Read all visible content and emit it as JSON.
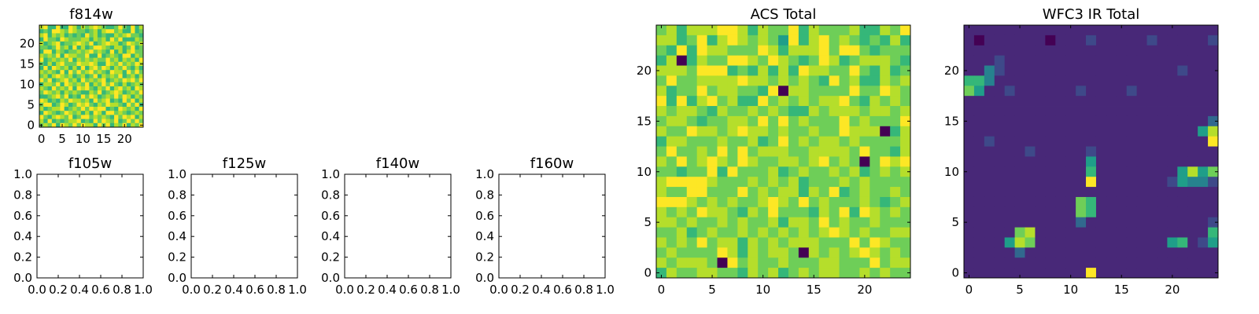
{
  "chart_data": [
    {
      "type": "heatmap",
      "title": "f814w",
      "colormap": "viridis",
      "xlim": [
        -0.5,
        24.5
      ],
      "ylim": [
        -0.5,
        24.5
      ],
      "xticks": [
        0,
        5,
        10,
        15,
        20
      ],
      "yticks": [
        0,
        5,
        10,
        15,
        20
      ],
      "z_rows_top_to_bottom": [
        "8966966986878987667976968",
        "6769987987767868997866967",
        "8968786767697867668789776",
        "6977698777886878697966687",
        "8678967789879678988679878",
        "7767978696867998768867967",
        "6996876778789787696868977",
        "8787969887796696787699687",
        "9678787968787877978687869",
        "7686897779889866987978798",
        "6969878686968979868797686",
        "8787696979789787698869797",
        "7868987867867968787967868",
        "9796789786978789678798979",
        "6887969878796879797686787",
        "8769787969897687968978698",
        "7987868787668796789867879",
        "6678979676979867879798687",
        "9867687988786978967697968",
        "7996798679897687988769796",
        "8678896787979899676987869",
        "6987679878686986997876787",
        "9768987967997878769798968",
        "8696767889676979879679797",
        "7879698797988697968796879"
      ]
    },
    {
      "type": "scatter",
      "title": "f105w",
      "xlim": [
        0.0,
        1.0
      ],
      "ylim": [
        0.0,
        1.0
      ],
      "xticks": [
        "0.0",
        "0.2",
        "0.4",
        "0.6",
        "0.8",
        "1.0"
      ],
      "yticks": [
        "0.0",
        "0.2",
        "0.4",
        "0.6",
        "0.8",
        "1.0"
      ],
      "points": []
    },
    {
      "type": "scatter",
      "title": "f125w",
      "xlim": [
        0.0,
        1.0
      ],
      "ylim": [
        0.0,
        1.0
      ],
      "xticks": [
        "0.0",
        "0.2",
        "0.4",
        "0.6",
        "0.8",
        "1.0"
      ],
      "yticks": [
        "0.0",
        "0.2",
        "0.4",
        "0.6",
        "0.8",
        "1.0"
      ],
      "points": []
    },
    {
      "type": "scatter",
      "title": "f140w",
      "xlim": [
        0.0,
        1.0
      ],
      "ylim": [
        0.0,
        1.0
      ],
      "xticks": [
        "0.0",
        "0.2",
        "0.4",
        "0.6",
        "0.8",
        "1.0"
      ],
      "yticks": [
        "0.0",
        "0.2",
        "0.4",
        "0.6",
        "0.8",
        "1.0"
      ],
      "points": []
    },
    {
      "type": "scatter",
      "title": "f160w",
      "xlim": [
        0.0,
        1.0
      ],
      "ylim": [
        0.0,
        1.0
      ],
      "xticks": [
        "0.0",
        "0.2",
        "0.4",
        "0.6",
        "0.8",
        "1.0"
      ],
      "yticks": [
        "0.0",
        "0.2",
        "0.4",
        "0.6",
        "0.8",
        "1.0"
      ],
      "points": []
    },
    {
      "type": "heatmap",
      "title": "ACS Total",
      "colormap": "viridis",
      "xlim": [
        -0.5,
        24.5
      ],
      "ylim": [
        -0.5,
        24.5
      ],
      "xticks": [
        0,
        5,
        10,
        15,
        20
      ],
      "yticks": [
        0,
        5,
        10,
        15,
        20
      ],
      "z_rows_top_to_bottom": [
        "7868889986877968777866879",
        "8867968987875968978767686",
        "7696988777986888979976777",
        "6806877998798767986788876",
        "8887999676868698877976867",
        "7977888898878787697866878",
        "8677978877690887777977987",
        "9696897866978787889768787",
        "8788768778787668788878878",
        "7887677887979787779787779",
        "8779887898878778779888068",
        "6887778778679787887877778",
        "7977879797888778888797768",
        "8797898798778878978707989",
        "7767796977786787787867878",
        "8999987778787867778787777",
        "8779977797878868796787787",
        "9998787877898797877787678",
        "8787988768797776879698787",
        "8878778787786887978778777",
        "7786787787878787898787788",
        "8787978868787888777979877",
        "7877779868788708787898787",
        "8788870978778777887779788",
        "6877887768786787887787877"
      ]
    },
    {
      "type": "heatmap",
      "title": "WFC3 IR Total",
      "colormap": "viridis",
      "xlim": [
        -0.5,
        24.5
      ],
      "ylim": [
        -0.5,
        24.5
      ],
      "xticks": [
        0,
        5,
        10,
        15,
        20
      ],
      "yticks": [
        0,
        5,
        10,
        15,
        20
      ],
      "z_rows_top_to_bottom": [
        "1111111111111111111111111",
        "1011111101112111112111112",
        "1111111111111111111111111",
        "1112111111111111111111111",
        "1142111111111111111112111",
        "6641111111111111111111111",
        "7511211111121111211111111",
        "1111111111111111111111111",
        "1111111111111111111111111",
        "1111111111111111111111113",
        "1111111111111111111111158",
        "1121111111111111111111119",
        "1111112111112111111111111",
        "1111111111115111111111111",
        "1111111111116111111115857",
        "1111111111119111111125442",
        "1111111111111111111111111",
        "1111111111176111111111111",
        "1111111111176111111111111",
        "1111111111131111111111112",
        "1111178111111111111111116",
        "1111587111111111111156125",
        "1111131111111111111111111",
        "1111111111111111111111111",
        "1111111111119111111111111"
      ]
    }
  ]
}
